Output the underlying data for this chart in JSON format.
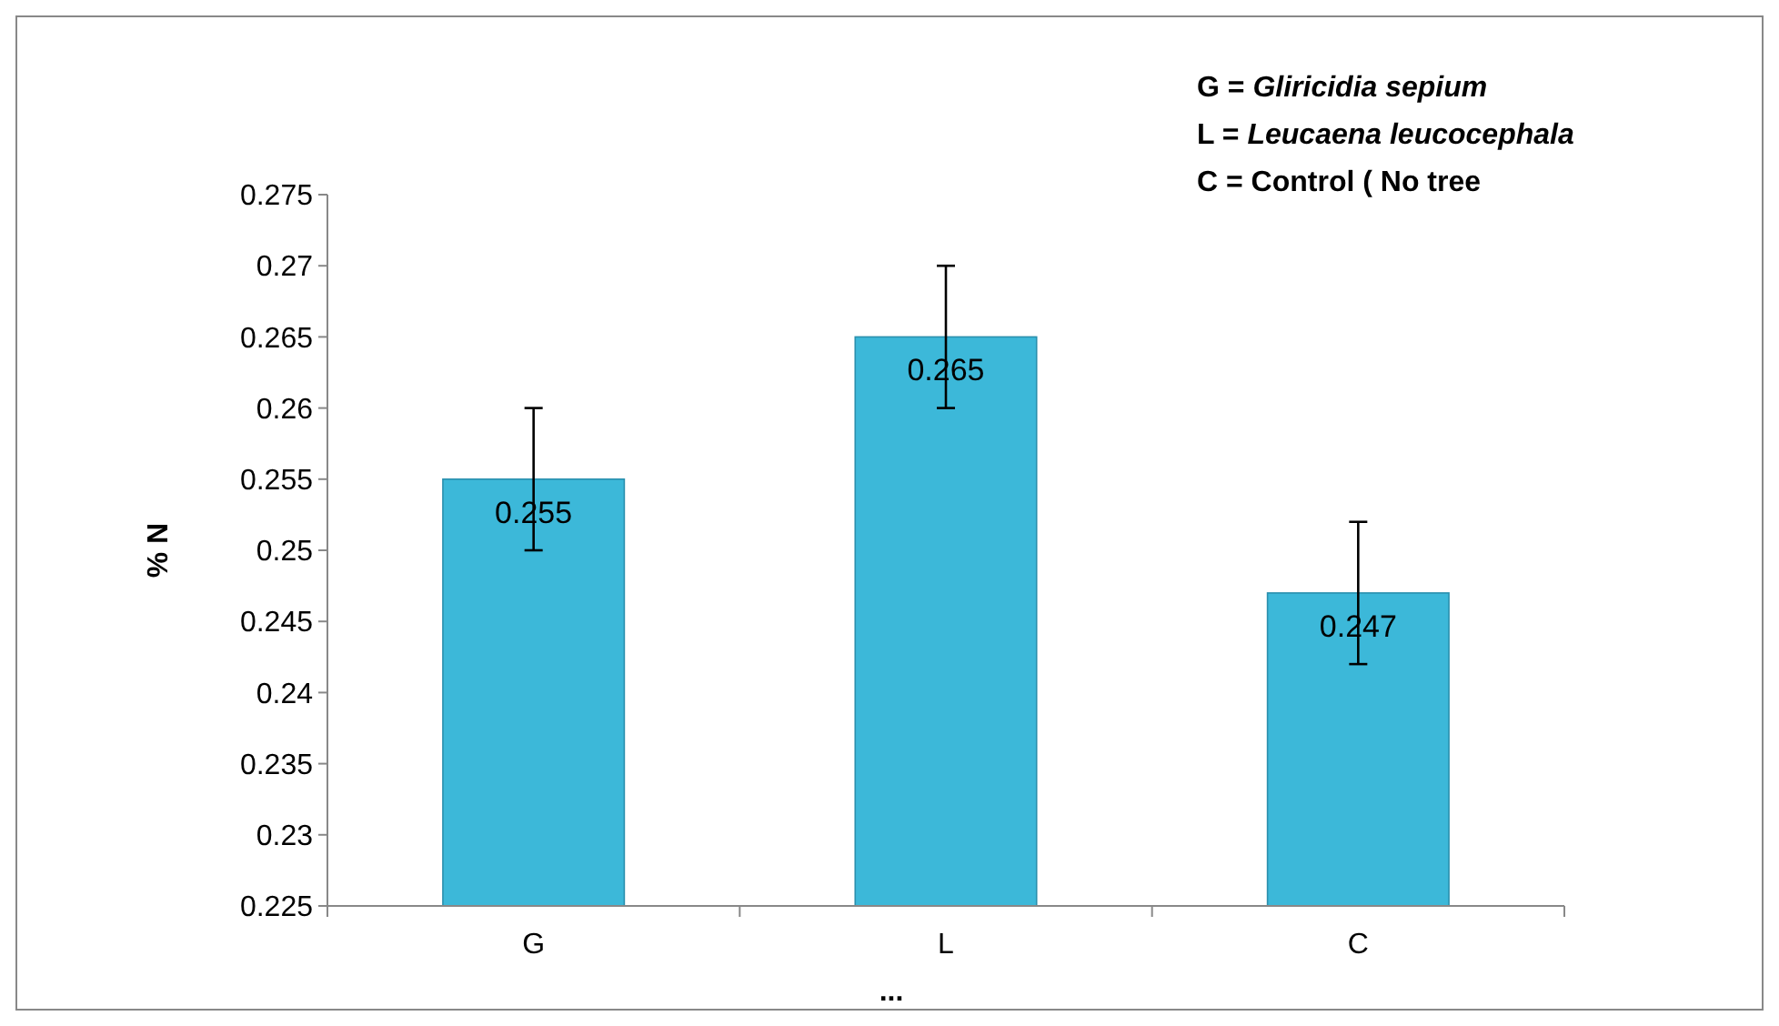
{
  "chart_data": {
    "type": "bar",
    "ylabel": "% N",
    "xlabel": "...",
    "categories": [
      "G",
      "L",
      "C"
    ],
    "values": [
      0.255,
      0.265,
      0.247
    ],
    "errors": [
      0.005,
      0.005,
      0.005
    ],
    "color": "#3cb8d9",
    "ylim": [
      0.225,
      0.275
    ],
    "yticks": [
      0.225,
      0.23,
      0.235,
      0.24,
      0.245,
      0.25,
      0.255,
      0.26,
      0.265,
      0.27,
      0.275
    ],
    "data_labels": true,
    "grid": false,
    "annotations": [
      "G = Gliricidia sepium",
      "L = Leucaena leucocephala",
      "C = Control ( No tree"
    ]
  }
}
